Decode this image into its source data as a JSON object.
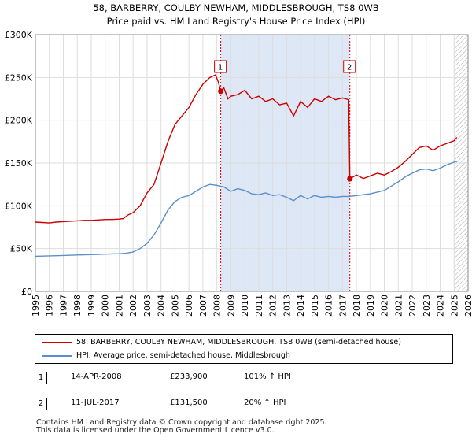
{
  "chart_data": {
    "type": "line",
    "title": "58, BARBERRY, COULBY NEWHAM, MIDDLESBROUGH, TS8 0WB",
    "subtitle": "Price paid vs. HM Land Registry's House Price Index (HPI)",
    "xlabel": "",
    "ylabel": "",
    "xlim": [
      1995,
      2026
    ],
    "ylim": [
      0,
      300000
    ],
    "x_ticks": [
      "1995",
      "1996",
      "1997",
      "1998",
      "1999",
      "2000",
      "2001",
      "2002",
      "2003",
      "2004",
      "2005",
      "2006",
      "2007",
      "2008",
      "2009",
      "2010",
      "2011",
      "2012",
      "2013",
      "2014",
      "2015",
      "2016",
      "2017",
      "2018",
      "2019",
      "2020",
      "2021",
      "2022",
      "2023",
      "2024",
      "2025",
      "2026"
    ],
    "y_ticks": [
      {
        "value": 0,
        "label": "£0"
      },
      {
        "value": 50000,
        "label": "£50K"
      },
      {
        "value": 100000,
        "label": "£100K"
      },
      {
        "value": 150000,
        "label": "£150K"
      },
      {
        "value": 200000,
        "label": "£200K"
      },
      {
        "value": 250000,
        "label": "£250K"
      },
      {
        "value": 300000,
        "label": "£300K"
      }
    ],
    "grid": true,
    "shaded_region": {
      "from": 2008.28,
      "to": 2017.53,
      "color": "#dde7f5"
    },
    "hatched_region_from": 2025.0,
    "series": [
      {
        "name": "58, BARBERRY, COULBY NEWHAM, MIDDLESBROUGH, TS8 0WB (semi-detached house)",
        "color": "#cc0000",
        "points": [
          [
            1995,
            81000
          ],
          [
            1995.5,
            80500
          ],
          [
            1996,
            80000
          ],
          [
            1996.5,
            81000
          ],
          [
            1997,
            81500
          ],
          [
            1997.5,
            82000
          ],
          [
            1998,
            82500
          ],
          [
            1998.5,
            83000
          ],
          [
            1999,
            83000
          ],
          [
            1999.5,
            83500
          ],
          [
            2000,
            84000
          ],
          [
            2000.5,
            84000
          ],
          [
            2001,
            84500
          ],
          [
            2001.3,
            85000
          ],
          [
            2001.6,
            89000
          ],
          [
            2002,
            92000
          ],
          [
            2002.5,
            100000
          ],
          [
            2003,
            115000
          ],
          [
            2003.5,
            125000
          ],
          [
            2004,
            150000
          ],
          [
            2004.5,
            175000
          ],
          [
            2005,
            195000
          ],
          [
            2005.5,
            205000
          ],
          [
            2006,
            215000
          ],
          [
            2006.5,
            230000
          ],
          [
            2007,
            242000
          ],
          [
            2007.5,
            250000
          ],
          [
            2007.9,
            253000
          ],
          [
            2008.1,
            245000
          ],
          [
            2008.28,
            233900
          ],
          [
            2008.5,
            238000
          ],
          [
            2008.8,
            225000
          ],
          [
            2009,
            228000
          ],
          [
            2009.5,
            230000
          ],
          [
            2010,
            235000
          ],
          [
            2010.5,
            225000
          ],
          [
            2011,
            228000
          ],
          [
            2011.5,
            222000
          ],
          [
            2012,
            225000
          ],
          [
            2012.5,
            218000
          ],
          [
            2013,
            220000
          ],
          [
            2013.5,
            205000
          ],
          [
            2014,
            222000
          ],
          [
            2014.5,
            215000
          ],
          [
            2015,
            225000
          ],
          [
            2015.5,
            222000
          ],
          [
            2016,
            228000
          ],
          [
            2016.5,
            224000
          ],
          [
            2017,
            226000
          ],
          [
            2017.45,
            224000
          ],
          [
            2017.53,
            131500
          ],
          [
            2018,
            136000
          ],
          [
            2018.5,
            132000
          ],
          [
            2019,
            135000
          ],
          [
            2019.5,
            138000
          ],
          [
            2020,
            136000
          ],
          [
            2020.5,
            140000
          ],
          [
            2021,
            145000
          ],
          [
            2021.5,
            152000
          ],
          [
            2022,
            160000
          ],
          [
            2022.5,
            168000
          ],
          [
            2023,
            170000
          ],
          [
            2023.5,
            165000
          ],
          [
            2024,
            170000
          ],
          [
            2024.5,
            173000
          ],
          [
            2025,
            176000
          ],
          [
            2025.2,
            180000
          ]
        ]
      },
      {
        "name": "HPI: Average price, semi-detached house, Middlesbrough",
        "color": "#5b8fc9",
        "points": [
          [
            1995,
            41000
          ],
          [
            1996,
            41500
          ],
          [
            1997,
            42000
          ],
          [
            1998,
            42500
          ],
          [
            1999,
            43000
          ],
          [
            2000,
            43500
          ],
          [
            2001,
            44000
          ],
          [
            2001.5,
            44500
          ],
          [
            2002,
            46000
          ],
          [
            2002.5,
            50000
          ],
          [
            2003,
            56000
          ],
          [
            2003.5,
            66000
          ],
          [
            2004,
            80000
          ],
          [
            2004.5,
            95000
          ],
          [
            2005,
            105000
          ],
          [
            2005.5,
            110000
          ],
          [
            2006,
            112000
          ],
          [
            2006.5,
            117000
          ],
          [
            2007,
            122000
          ],
          [
            2007.5,
            125000
          ],
          [
            2008,
            124000
          ],
          [
            2008.5,
            122000
          ],
          [
            2009,
            117000
          ],
          [
            2009.5,
            120000
          ],
          [
            2010,
            118000
          ],
          [
            2010.5,
            114000
          ],
          [
            2011,
            113000
          ],
          [
            2011.5,
            115000
          ],
          [
            2012,
            112000
          ],
          [
            2012.5,
            113000
          ],
          [
            2013,
            110000
          ],
          [
            2013.5,
            106000
          ],
          [
            2014,
            112000
          ],
          [
            2014.5,
            108000
          ],
          [
            2015,
            112000
          ],
          [
            2015.5,
            110000
          ],
          [
            2016,
            111000
          ],
          [
            2016.5,
            110000
          ],
          [
            2017,
            111000
          ],
          [
            2017.5,
            111000
          ],
          [
            2018,
            112000
          ],
          [
            2018.5,
            113000
          ],
          [
            2019,
            114000
          ],
          [
            2019.5,
            116000
          ],
          [
            2020,
            118000
          ],
          [
            2020.5,
            123000
          ],
          [
            2021,
            128000
          ],
          [
            2021.5,
            134000
          ],
          [
            2022,
            138000
          ],
          [
            2022.5,
            142000
          ],
          [
            2023,
            143000
          ],
          [
            2023.5,
            141000
          ],
          [
            2024,
            144000
          ],
          [
            2024.5,
            148000
          ],
          [
            2025,
            151000
          ],
          [
            2025.2,
            152000
          ]
        ]
      }
    ],
    "annotations": [
      {
        "label": "1",
        "x": 2008.28,
        "price": 233900
      },
      {
        "label": "2",
        "x": 2017.53,
        "price": 131500
      }
    ]
  },
  "legend": {
    "items": [
      {
        "label": "58, BARBERRY, COULBY NEWHAM, MIDDLESBROUGH, TS8 0WB (semi-detached house)",
        "color": "#cc0000"
      },
      {
        "label": "HPI: Average price, semi-detached house, Middlesbrough",
        "color": "#5b8fc9"
      }
    ]
  },
  "transactions": [
    {
      "num": "1",
      "date": "14-APR-2008",
      "price": "£233,900",
      "hpi": "101% ↑ HPI"
    },
    {
      "num": "2",
      "date": "11-JUL-2017",
      "price": "£131,500",
      "hpi": "20% ↑ HPI"
    }
  ],
  "footer": {
    "line1": "Contains HM Land Registry data © Crown copyright and database right 2025.",
    "line2": "This data is licensed under the Open Government Licence v3.0."
  }
}
